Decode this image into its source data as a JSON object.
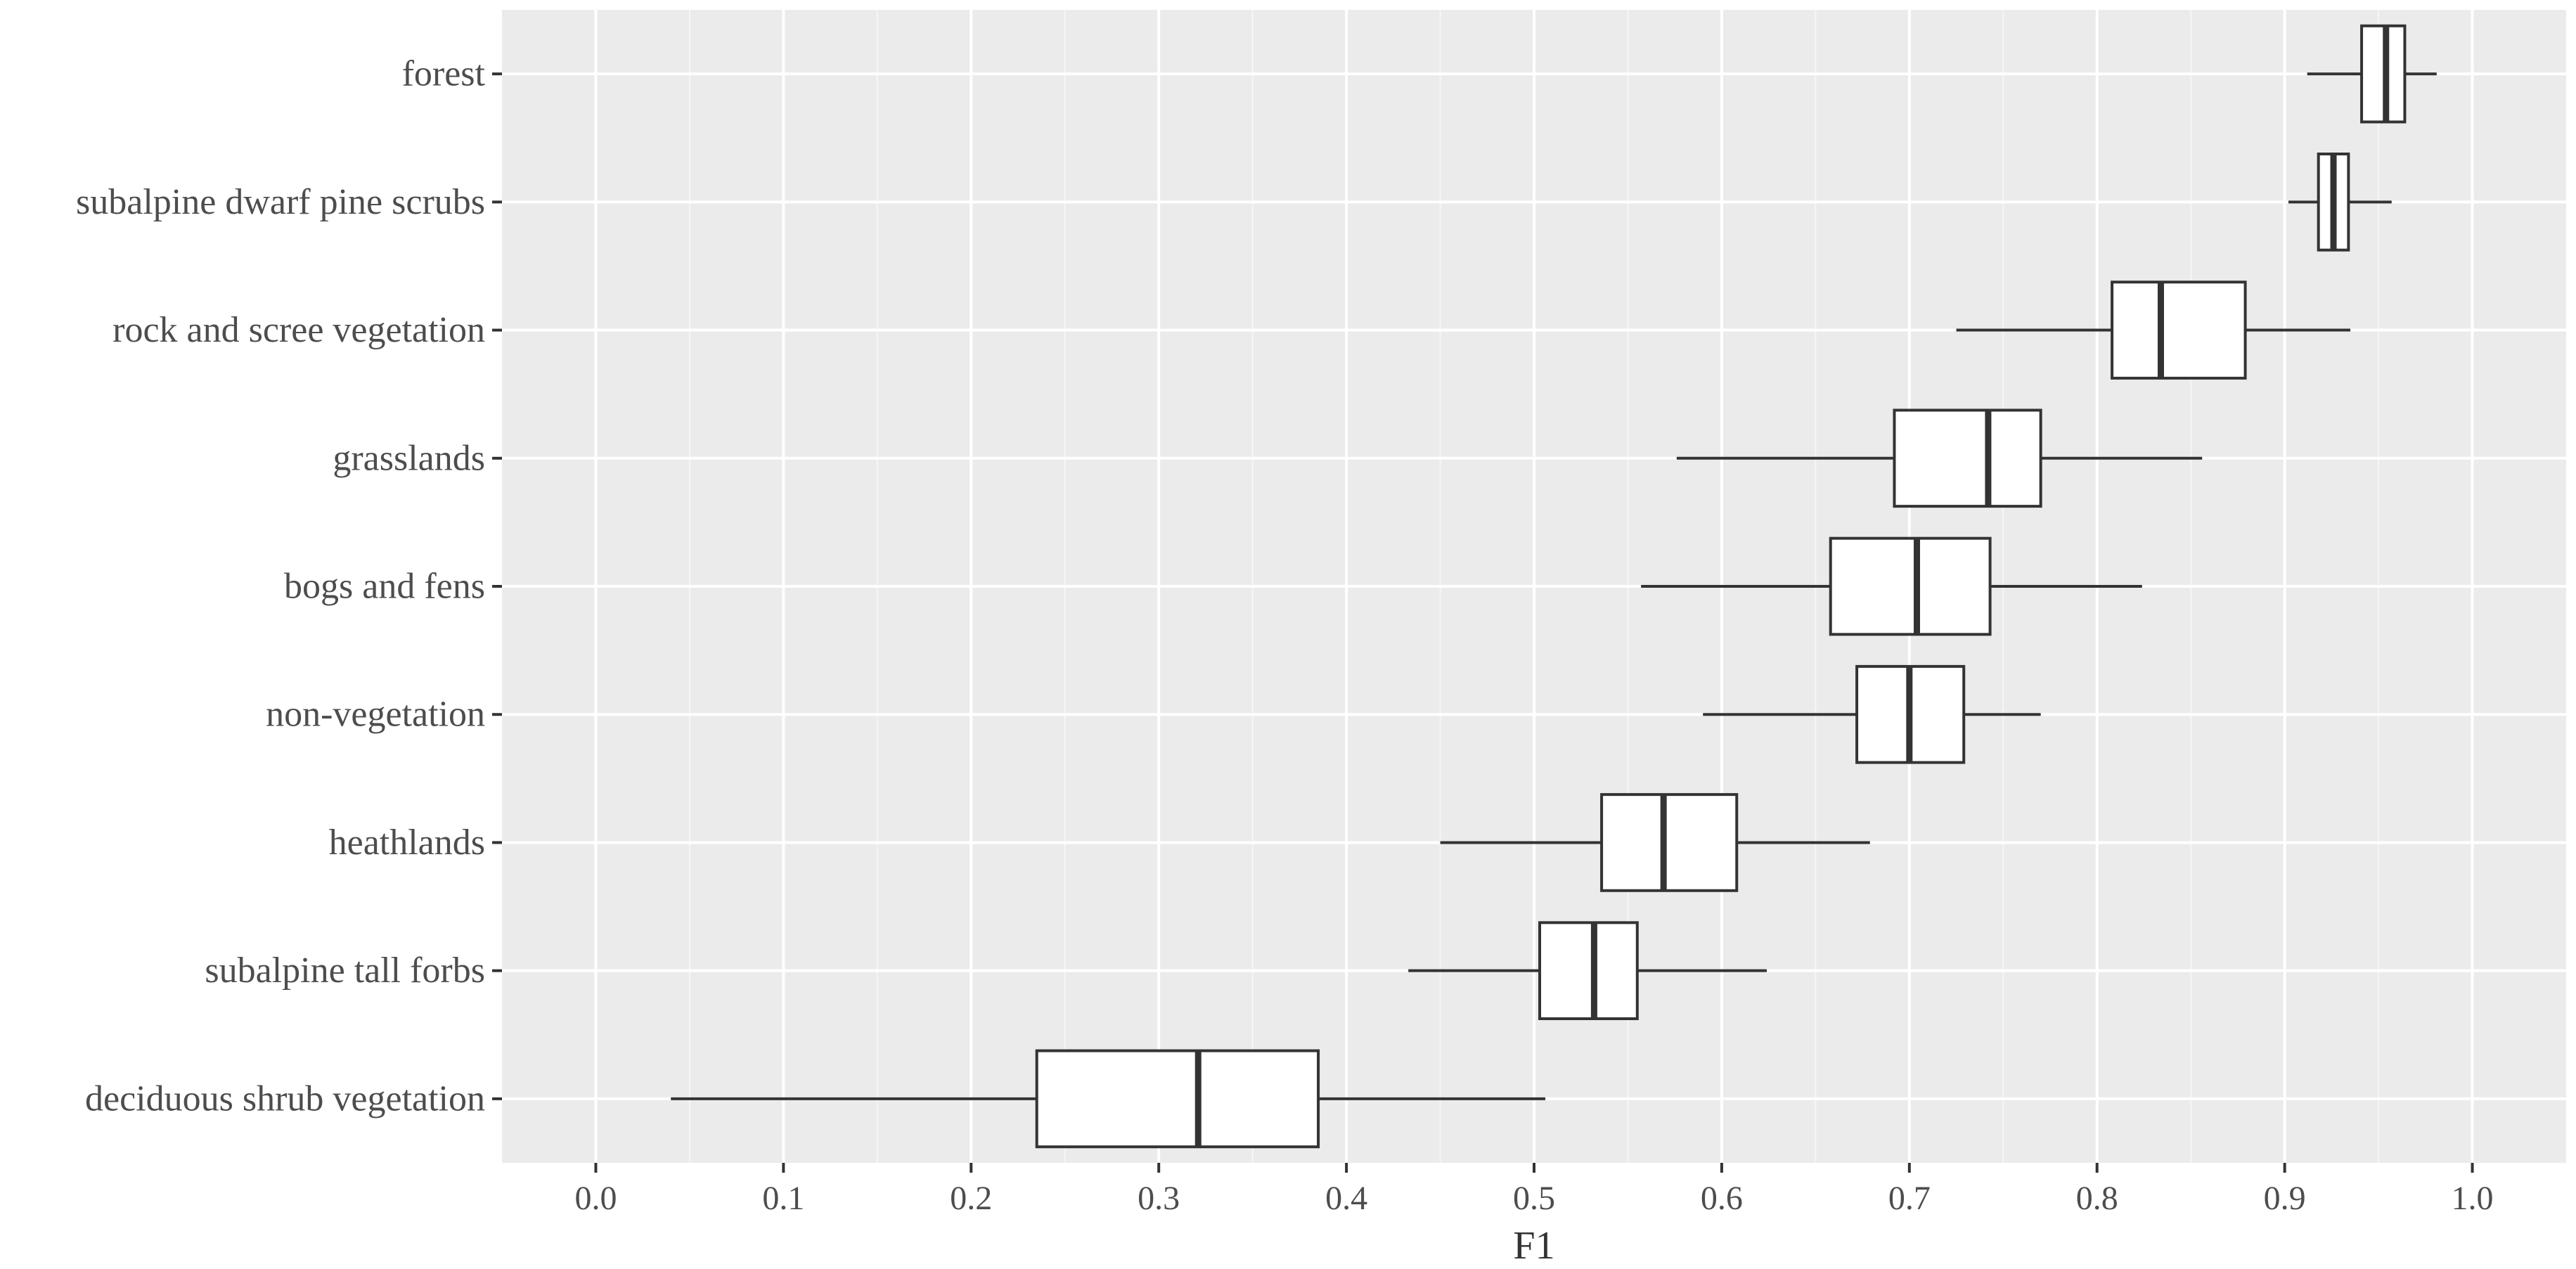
{
  "chart_data": {
    "type": "boxplot",
    "orientation": "horizontal",
    "title": "",
    "xlabel": "F1",
    "ylabel": "",
    "xlim": [
      -0.05,
      1.05
    ],
    "x_ticks": [
      0.0,
      0.1,
      0.2,
      0.3,
      0.4,
      0.5,
      0.6,
      0.7,
      0.8,
      0.9,
      1.0
    ],
    "x_tick_labels": [
      "0.0",
      "0.1",
      "0.2",
      "0.3",
      "0.4",
      "0.5",
      "0.6",
      "0.7",
      "0.8",
      "0.9",
      "1.0"
    ],
    "grid": true,
    "categories": [
      "forest",
      "subalpine dwarf pine scrubs",
      "rock and scree vegetation",
      "grasslands",
      "bogs and fens",
      "non-vegetation",
      "heathlands",
      "subalpine tall forbs",
      "deciduous shrub vegetation"
    ],
    "boxes": [
      {
        "category": "forest",
        "whisker_low": 0.912,
        "q1": 0.941,
        "median": 0.954,
        "q3": 0.964,
        "whisker_high": 0.981
      },
      {
        "category": "subalpine dwarf pine scrubs",
        "whisker_low": 0.902,
        "q1": 0.918,
        "median": 0.926,
        "q3": 0.934,
        "whisker_high": 0.957
      },
      {
        "category": "rock and scree vegetation",
        "whisker_low": 0.725,
        "q1": 0.808,
        "median": 0.834,
        "q3": 0.879,
        "whisker_high": 0.935
      },
      {
        "category": "grasslands",
        "whisker_low": 0.576,
        "q1": 0.692,
        "median": 0.742,
        "q3": 0.77,
        "whisker_high": 0.856
      },
      {
        "category": "bogs and fens",
        "whisker_low": 0.557,
        "q1": 0.658,
        "median": 0.704,
        "q3": 0.743,
        "whisker_high": 0.824
      },
      {
        "category": "non-vegetation",
        "whisker_low": 0.59,
        "q1": 0.672,
        "median": 0.7,
        "q3": 0.729,
        "whisker_high": 0.77
      },
      {
        "category": "heathlands",
        "whisker_low": 0.45,
        "q1": 0.536,
        "median": 0.569,
        "q3": 0.608,
        "whisker_high": 0.679
      },
      {
        "category": "subalpine tall forbs",
        "whisker_low": 0.433,
        "q1": 0.503,
        "median": 0.532,
        "q3": 0.555,
        "whisker_high": 0.624
      },
      {
        "category": "deciduous shrub vegetation",
        "whisker_low": 0.04,
        "q1": 0.235,
        "median": 0.321,
        "q3": 0.385,
        "whisker_high": 0.506
      }
    ],
    "colors": {
      "panel_background": "#ebebeb",
      "grid_major": "#ffffff",
      "box_fill": "#ffffff",
      "box_stroke": "#333333",
      "text": "#4d4d4d"
    }
  }
}
